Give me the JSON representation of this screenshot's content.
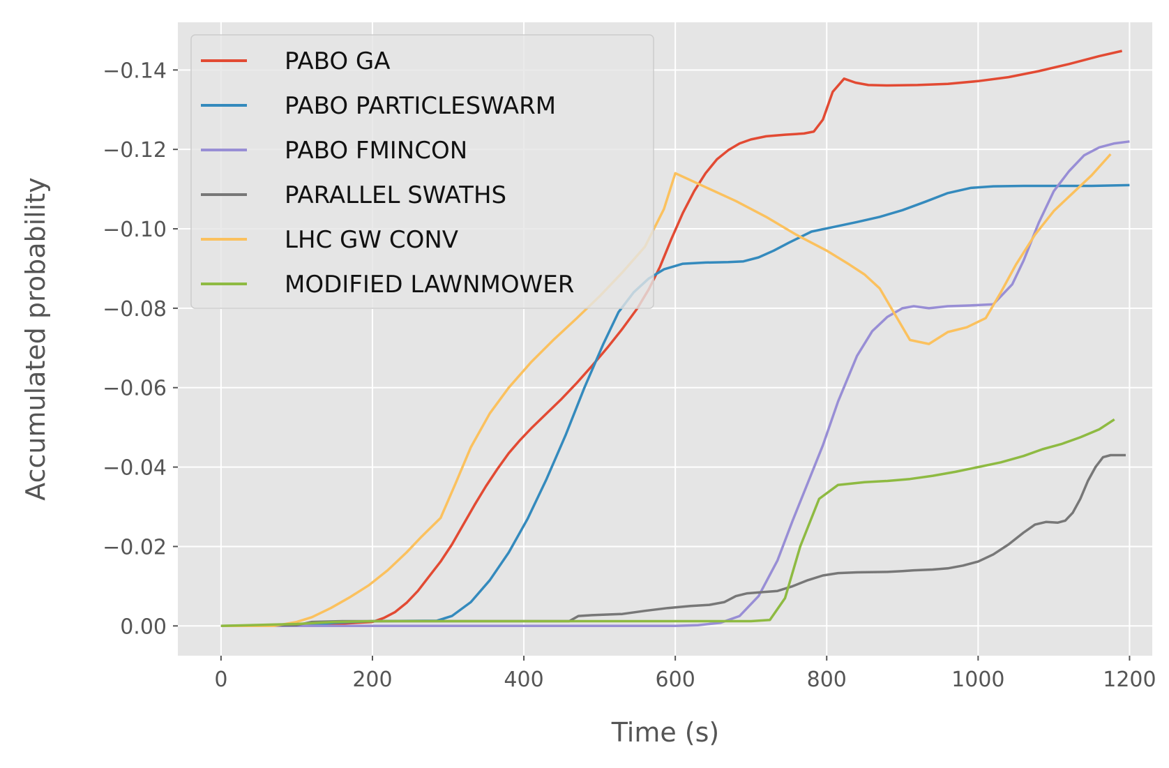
{
  "chart_data": {
    "type": "line",
    "title": "",
    "xlabel": "Time (s)",
    "ylabel": "Accumulated probability",
    "xlim": [
      -57,
      1230
    ],
    "ylim": [
      0.0075,
      -0.152
    ],
    "x_ticks": [
      0,
      200,
      400,
      600,
      800,
      1000,
      1200
    ],
    "y_ticks": [
      0.0,
      -0.02,
      -0.04,
      -0.06,
      -0.08,
      -0.1,
      -0.12,
      -0.14
    ],
    "x_tick_labels": [
      "0",
      "200",
      "400",
      "600",
      "800",
      "1000",
      "1200"
    ],
    "y_tick_labels": [
      "0.00",
      "−0.02",
      "−0.04",
      "−0.06",
      "−0.08",
      "−0.10",
      "−0.12",
      "−0.14"
    ],
    "grid": true,
    "legend_position": "top-left",
    "series": [
      {
        "name": "PABO GA",
        "color": "#E24A33",
        "points": [
          [
            0,
            0
          ],
          [
            100,
            0
          ],
          [
            150,
            -0.0005
          ],
          [
            200,
            -0.001
          ],
          [
            215,
            -0.002
          ],
          [
            230,
            -0.0035
          ],
          [
            245,
            -0.0058
          ],
          [
            260,
            -0.0088
          ],
          [
            275,
            -0.0125
          ],
          [
            290,
            -0.0162
          ],
          [
            305,
            -0.0205
          ],
          [
            320,
            -0.0255
          ],
          [
            335,
            -0.0305
          ],
          [
            350,
            -0.0352
          ],
          [
            365,
            -0.0395
          ],
          [
            380,
            -0.0435
          ],
          [
            395,
            -0.0468
          ],
          [
            410,
            -0.0498
          ],
          [
            430,
            -0.0535
          ],
          [
            450,
            -0.0572
          ],
          [
            470,
            -0.0612
          ],
          [
            490,
            -0.0655
          ],
          [
            510,
            -0.07
          ],
          [
            530,
            -0.0748
          ],
          [
            550,
            -0.08
          ],
          [
            565,
            -0.0848
          ],
          [
            580,
            -0.0905
          ],
          [
            595,
            -0.0975
          ],
          [
            610,
            -0.104
          ],
          [
            625,
            -0.1095
          ],
          [
            640,
            -0.114
          ],
          [
            655,
            -0.1175
          ],
          [
            670,
            -0.1198
          ],
          [
            685,
            -0.1215
          ],
          [
            700,
            -0.1225
          ],
          [
            720,
            -0.1233
          ],
          [
            745,
            -0.1237
          ],
          [
            770,
            -0.124
          ],
          [
            783,
            -0.1245
          ],
          [
            795,
            -0.1275
          ],
          [
            808,
            -0.1345
          ],
          [
            823,
            -0.1378
          ],
          [
            838,
            -0.1368
          ],
          [
            855,
            -0.1362
          ],
          [
            880,
            -0.1361
          ],
          [
            920,
            -0.1362
          ],
          [
            960,
            -0.1365
          ],
          [
            1000,
            -0.1372
          ],
          [
            1040,
            -0.1382
          ],
          [
            1080,
            -0.1397
          ],
          [
            1120,
            -0.1415
          ],
          [
            1160,
            -0.1435
          ],
          [
            1190,
            -0.1448
          ]
        ]
      },
      {
        "name": "PABO PARTICLESWARM",
        "color": "#348ABD",
        "points": [
          [
            0,
            0
          ],
          [
            100,
            0
          ],
          [
            150,
            -0.0008
          ],
          [
            200,
            -0.0012
          ],
          [
            285,
            -0.0013
          ],
          [
            305,
            -0.0025
          ],
          [
            330,
            -0.006
          ],
          [
            355,
            -0.0115
          ],
          [
            380,
            -0.0185
          ],
          [
            405,
            -0.027
          ],
          [
            430,
            -0.037
          ],
          [
            455,
            -0.048
          ],
          [
            480,
            -0.06
          ],
          [
            505,
            -0.071
          ],
          [
            525,
            -0.079
          ],
          [
            545,
            -0.084
          ],
          [
            565,
            -0.0875
          ],
          [
            585,
            -0.0898
          ],
          [
            610,
            -0.0912
          ],
          [
            640,
            -0.0915
          ],
          [
            670,
            -0.0916
          ],
          [
            690,
            -0.0918
          ],
          [
            710,
            -0.0928
          ],
          [
            730,
            -0.0945
          ],
          [
            750,
            -0.0965
          ],
          [
            780,
            -0.0993
          ],
          [
            810,
            -0.1005
          ],
          [
            840,
            -0.1017
          ],
          [
            870,
            -0.103
          ],
          [
            900,
            -0.1047
          ],
          [
            930,
            -0.1068
          ],
          [
            960,
            -0.109
          ],
          [
            990,
            -0.1103
          ],
          [
            1020,
            -0.1107
          ],
          [
            1060,
            -0.1108
          ],
          [
            1100,
            -0.1108
          ],
          [
            1150,
            -0.1108
          ],
          [
            1200,
            -0.111
          ]
        ]
      },
      {
        "name": "PABO FMINCON",
        "color": "#988ED5",
        "points": [
          [
            0,
            0
          ],
          [
            300,
            0
          ],
          [
            600,
            0
          ],
          [
            630,
            -0.0002
          ],
          [
            660,
            -0.0008
          ],
          [
            685,
            -0.0025
          ],
          [
            710,
            -0.0075
          ],
          [
            735,
            -0.0165
          ],
          [
            755,
            -0.0265
          ],
          [
            775,
            -0.036
          ],
          [
            795,
            -0.0455
          ],
          [
            815,
            -0.0565
          ],
          [
            840,
            -0.068
          ],
          [
            860,
            -0.0742
          ],
          [
            880,
            -0.0778
          ],
          [
            900,
            -0.08
          ],
          [
            915,
            -0.0805
          ],
          [
            935,
            -0.08
          ],
          [
            960,
            -0.0805
          ],
          [
            990,
            -0.0807
          ],
          [
            1020,
            -0.081
          ],
          [
            1045,
            -0.086
          ],
          [
            1060,
            -0.092
          ],
          [
            1080,
            -0.1015
          ],
          [
            1100,
            -0.1095
          ],
          [
            1120,
            -0.1145
          ],
          [
            1140,
            -0.1185
          ],
          [
            1160,
            -0.1205
          ],
          [
            1180,
            -0.1215
          ],
          [
            1200,
            -0.122
          ]
        ]
      },
      {
        "name": "PARALLEL SWATHS",
        "color": "#777777",
        "points": [
          [
            0,
            0
          ],
          [
            100,
            -0.0002
          ],
          [
            120,
            -0.001
          ],
          [
            160,
            -0.0012
          ],
          [
            460,
            -0.0012
          ],
          [
            472,
            -0.0025
          ],
          [
            490,
            -0.0027
          ],
          [
            530,
            -0.003
          ],
          [
            560,
            -0.0038
          ],
          [
            590,
            -0.0045
          ],
          [
            620,
            -0.005
          ],
          [
            645,
            -0.0053
          ],
          [
            665,
            -0.006
          ],
          [
            680,
            -0.0075
          ],
          [
            695,
            -0.0082
          ],
          [
            715,
            -0.0085
          ],
          [
            735,
            -0.0088
          ],
          [
            755,
            -0.01
          ],
          [
            775,
            -0.0115
          ],
          [
            795,
            -0.0127
          ],
          [
            815,
            -0.0133
          ],
          [
            840,
            -0.0135
          ],
          [
            880,
            -0.0136
          ],
          [
            900,
            -0.0138
          ],
          [
            915,
            -0.014
          ],
          [
            940,
            -0.0142
          ],
          [
            960,
            -0.0145
          ],
          [
            980,
            -0.0152
          ],
          [
            1000,
            -0.0162
          ],
          [
            1020,
            -0.018
          ],
          [
            1040,
            -0.0205
          ],
          [
            1060,
            -0.0235
          ],
          [
            1075,
            -0.0255
          ],
          [
            1090,
            -0.0262
          ],
          [
            1105,
            -0.026
          ],
          [
            1115,
            -0.0265
          ],
          [
            1125,
            -0.0285
          ],
          [
            1135,
            -0.032
          ],
          [
            1145,
            -0.0365
          ],
          [
            1155,
            -0.04
          ],
          [
            1165,
            -0.0425
          ],
          [
            1175,
            -0.043
          ],
          [
            1195,
            -0.043
          ]
        ]
      },
      {
        "name": "LHC GW CONV",
        "color": "#FBC15E",
        "points": [
          [
            0,
            0
          ],
          [
            70,
            0
          ],
          [
            100,
            -0.001
          ],
          [
            120,
            -0.0022
          ],
          [
            145,
            -0.0045
          ],
          [
            170,
            -0.0072
          ],
          [
            195,
            -0.0102
          ],
          [
            220,
            -0.014
          ],
          [
            245,
            -0.0185
          ],
          [
            265,
            -0.0225
          ],
          [
            290,
            -0.0272
          ],
          [
            310,
            -0.036
          ],
          [
            330,
            -0.045
          ],
          [
            355,
            -0.0535
          ],
          [
            380,
            -0.06
          ],
          [
            410,
            -0.0665
          ],
          [
            440,
            -0.0722
          ],
          [
            470,
            -0.0775
          ],
          [
            500,
            -0.083
          ],
          [
            530,
            -0.089
          ],
          [
            560,
            -0.0955
          ],
          [
            585,
            -0.105
          ],
          [
            600,
            -0.114
          ],
          [
            640,
            -0.1105
          ],
          [
            680,
            -0.107
          ],
          [
            720,
            -0.103
          ],
          [
            760,
            -0.0985
          ],
          [
            800,
            -0.0945
          ],
          [
            830,
            -0.091
          ],
          [
            850,
            -0.0885
          ],
          [
            870,
            -0.085
          ],
          [
            890,
            -0.0785
          ],
          [
            910,
            -0.072
          ],
          [
            935,
            -0.071
          ],
          [
            960,
            -0.074
          ],
          [
            985,
            -0.0752
          ],
          [
            1010,
            -0.0775
          ],
          [
            1030,
            -0.084
          ],
          [
            1050,
            -0.091
          ],
          [
            1075,
            -0.0985
          ],
          [
            1100,
            -0.1045
          ],
          [
            1125,
            -0.109
          ],
          [
            1150,
            -0.1135
          ],
          [
            1175,
            -0.1188
          ]
        ]
      },
      {
        "name": "MODIFIED LAWNMOWER",
        "color": "#8EBA42",
        "points": [
          [
            0,
            0
          ],
          [
            100,
            -0.0005
          ],
          [
            150,
            -0.001
          ],
          [
            200,
            -0.0012
          ],
          [
            400,
            -0.0012
          ],
          [
            600,
            -0.0012
          ],
          [
            660,
            -0.0012
          ],
          [
            700,
            -0.0012
          ],
          [
            725,
            -0.0015
          ],
          [
            745,
            -0.007
          ],
          [
            765,
            -0.02
          ],
          [
            790,
            -0.032
          ],
          [
            815,
            -0.0355
          ],
          [
            850,
            -0.0362
          ],
          [
            880,
            -0.0365
          ],
          [
            910,
            -0.037
          ],
          [
            940,
            -0.0378
          ],
          [
            970,
            -0.0388
          ],
          [
            1000,
            -0.04
          ],
          [
            1030,
            -0.0412
          ],
          [
            1060,
            -0.0428
          ],
          [
            1085,
            -0.0445
          ],
          [
            1110,
            -0.0458
          ],
          [
            1135,
            -0.0475
          ],
          [
            1160,
            -0.0495
          ],
          [
            1180,
            -0.052
          ]
        ]
      }
    ]
  }
}
